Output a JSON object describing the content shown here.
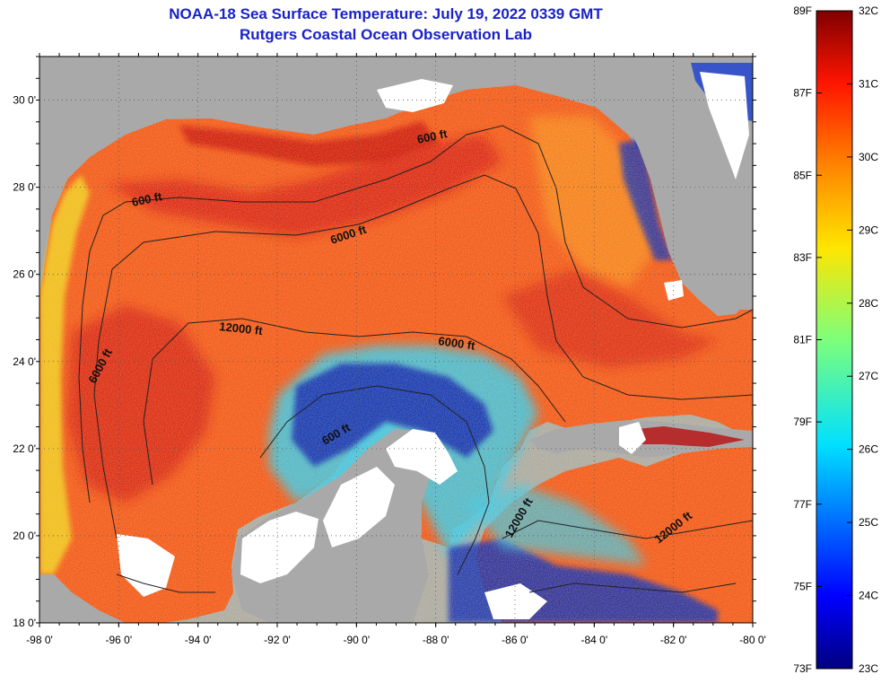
{
  "header": {
    "title": "NOAA-18 Sea Surface Temperature:  July 19, 2022 0339 GMT",
    "subtitle": "Rutgers Coastal Ocean Observation Lab"
  },
  "map": {
    "lon_range": [
      -98,
      -80
    ],
    "lat_range": [
      18,
      31
    ],
    "lon_ticks": [
      "-98 0'",
      "-96 0'",
      "-94 0'",
      "-92 0'",
      "-90 0'",
      "-88 0'",
      "-86 0'",
      "-84 0'",
      "-82 0'",
      "-80 0'"
    ],
    "lat_ticks": [
      "18 0'",
      "20 0'",
      "22 0'",
      "24 0'",
      "26 0'",
      "28 0'",
      "30 0'"
    ],
    "contour_labels": [
      "600 ft",
      "600 ft",
      "6000 ft",
      "12000 ft",
      "6000 ft",
      "6000 ft",
      "600 ft",
      "12000 ft",
      "12000 ft"
    ],
    "colors": {
      "land": "#a9a9a9",
      "cloud": "#ffffff",
      "water_warm": "#f2561c",
      "water_hot": "#d01212",
      "water_cool": "#1a3fcf",
      "water_mid": "#38d0ff",
      "contour": "#222222"
    }
  },
  "colorbar": {
    "fahrenheit_labels": [
      "89F",
      "87F",
      "85F",
      "83F",
      "81F",
      "79F",
      "77F",
      "75F",
      "73F"
    ],
    "celsius_labels": [
      "32C",
      "31C",
      "30C",
      "29C",
      "28C",
      "27C",
      "26C",
      "25C",
      "24C",
      "23C"
    ],
    "range_f": [
      73,
      89
    ],
    "range_c": [
      23,
      32
    ]
  }
}
